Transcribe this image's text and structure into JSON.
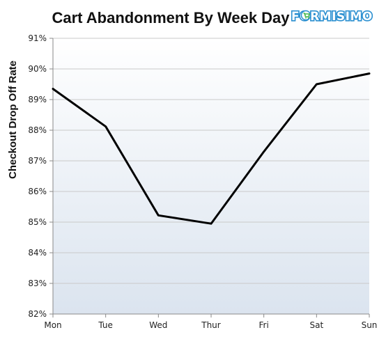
{
  "logo": {
    "text": "FORMISIMO",
    "color": "#2a8fd0",
    "accent": "#45b649"
  },
  "chart_data": {
    "type": "line",
    "title": "Cart Abandonment By Week Day",
    "ylabel": "Checkout Drop Off Rate",
    "xlabel": "",
    "categories": [
      "Mon",
      "Tue",
      "Wed",
      "Thur",
      "Fri",
      "Sat",
      "Sun"
    ],
    "series": [
      {
        "values": [
          89.35,
          88.12,
          85.22,
          84.95,
          87.3,
          89.5,
          89.85
        ]
      }
    ],
    "ylim": [
      82,
      91
    ],
    "yticks": [
      82,
      83,
      84,
      85,
      86,
      87,
      88,
      89,
      90,
      91
    ],
    "ytick_labels": [
      "82%",
      "83%",
      "84%",
      "85%",
      "86%",
      "87%",
      "88%",
      "89%",
      "90%",
      "91%"
    ],
    "grid": "horizontal",
    "line_color": "#000000",
    "background_gradient": [
      "#ffffff",
      "#dbe4ef"
    ],
    "legend": "none"
  }
}
